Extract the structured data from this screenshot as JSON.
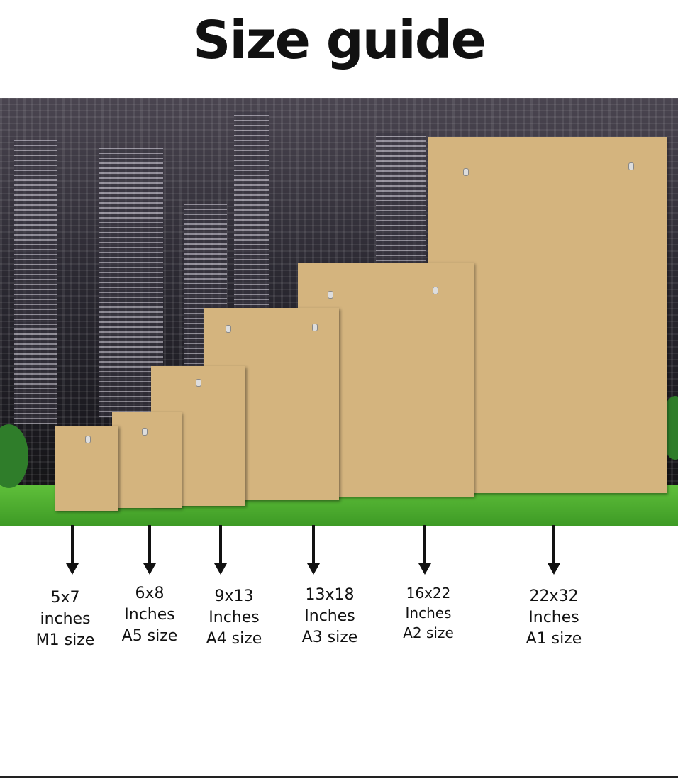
{
  "title": "Size guide",
  "sizes": [
    {
      "dims": "5x7",
      "unit": "inches",
      "name": "M1 size"
    },
    {
      "dims": "6x8",
      "unit": "Inches",
      "name": "A5 size"
    },
    {
      "dims": "9x13",
      "unit": "Inches",
      "name": "A4 size"
    },
    {
      "dims": "13x18",
      "unit": "Inches",
      "name": "A3 size"
    },
    {
      "dims": "16x22",
      "unit": "Inches",
      "name": "A2 size"
    },
    {
      "dims": "22x32",
      "unit": "Inches",
      "name": "A1 size"
    }
  ],
  "colors": {
    "board": "#d4b47e",
    "grass": "#4fae30",
    "background": "#2c2a33"
  }
}
